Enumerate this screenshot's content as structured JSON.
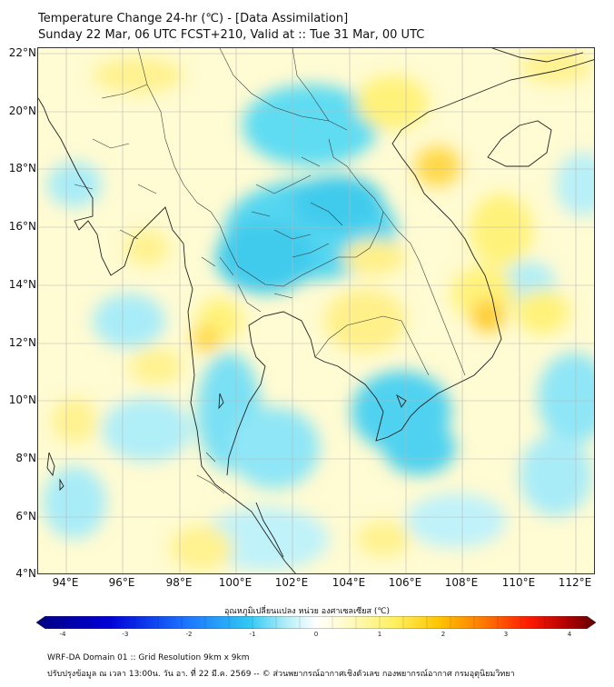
{
  "header": {
    "title_line1": "Temperature Change 24-hr (℃) - [Data Assimilation]",
    "title_line2": "Sunday 22 Mar, 06 UTC FCST+210, Valid at :: Tue 31 Mar, 00 UTC"
  },
  "map": {
    "lat_labels": [
      "22°N",
      "20°N",
      "18°N",
      "16°N",
      "14°N",
      "12°N",
      "10°N",
      "8°N",
      "6°N",
      "4°N"
    ],
    "lon_labels": [
      "94°E",
      "96°E",
      "98°E",
      "100°E",
      "102°E",
      "104°E",
      "106°E",
      "108°E",
      "110°E",
      "112°E"
    ],
    "lat_values": [
      22,
      20,
      18,
      16,
      14,
      12,
      10,
      8,
      6,
      4
    ],
    "lon_values": [
      94,
      96,
      98,
      100,
      102,
      104,
      106,
      108,
      110,
      112
    ],
    "lon_range": [
      93,
      112.7
    ],
    "lat_range": [
      4,
      22.2
    ]
  },
  "colorbar": {
    "title": "อุณหภูมิเปลี่ยนแปลง หน่วย องศาเซลเซียส (℃)",
    "ticks": [
      "-4",
      "-3",
      "-2",
      "-1",
      "0",
      "1",
      "2",
      "3",
      "4"
    ],
    "tick_values": [
      -4,
      -3,
      -2,
      -1,
      0,
      1,
      2,
      3,
      4
    ],
    "range": [
      -4,
      4
    ],
    "colors": [
      "#000080",
      "#0000d8",
      "#1a4fff",
      "#1aa8ff",
      "#40d8f0",
      "#b8f0f8",
      "#ffffff",
      "#fffac0",
      "#fff060",
      "#ffc400",
      "#ff7800",
      "#ff1a00",
      "#b00000",
      "#600000"
    ]
  },
  "footer": {
    "line1": "WRF-DA Domain 01 :: Grid Resolution 9km x 9km",
    "line2": "ปรับปรุงข้อมูล ณ เวลา 13:00น. วัน อา. ที่ 22 มี.ค. 2569 -- © ส่วนพยากรณ์อากาศเชิงตัวเลข กองพยากรณ์อากาศ กรมอุตุนิยมวิทยา"
  }
}
